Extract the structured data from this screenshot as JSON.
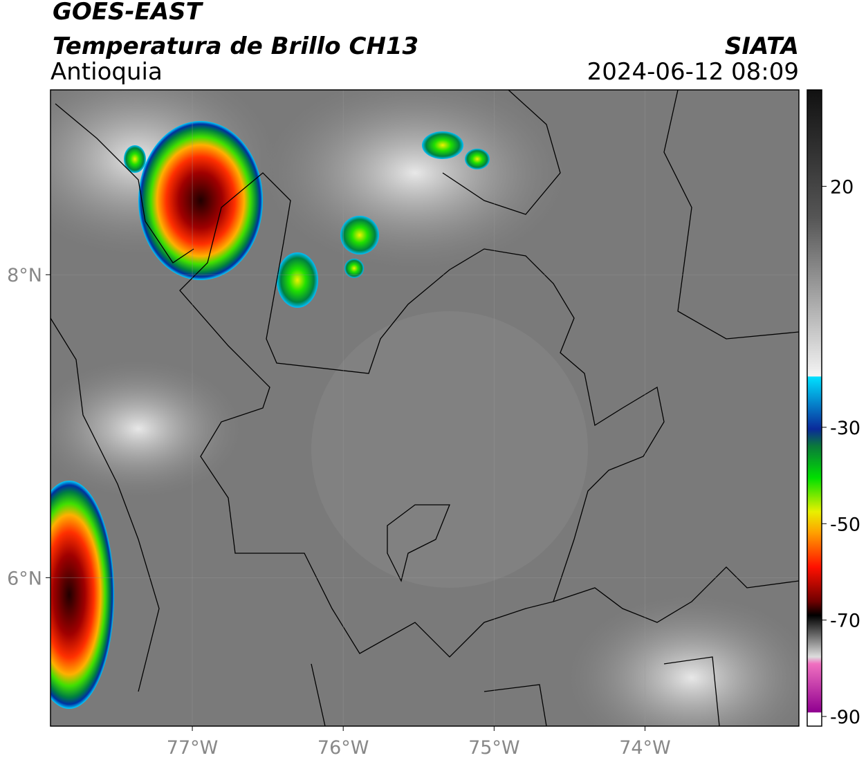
{
  "header": {
    "title": "GOES-EAST",
    "subtitle": "Temperatura de Brillo CH13",
    "region": "Antioquia",
    "source": "SIATA",
    "datetime": "2024-06-12 08:09"
  },
  "map": {
    "xlim": [
      -77.94,
      -72.98
    ],
    "ylim": [
      5.02,
      9.22
    ],
    "xticks": [
      {
        "value": -77,
        "label": "77°W"
      },
      {
        "value": -76,
        "label": "76°W"
      },
      {
        "value": -75,
        "label": "75°W"
      },
      {
        "value": -74,
        "label": "74°W"
      }
    ],
    "yticks": [
      {
        "value": 6,
        "label": "6°N"
      },
      {
        "value": 8,
        "label": "8°N"
      }
    ],
    "grid": true
  },
  "colorbar": {
    "lim": [
      -92,
      40
    ],
    "ticks": [
      20,
      -30,
      -50,
      -70,
      -90
    ]
  }
}
